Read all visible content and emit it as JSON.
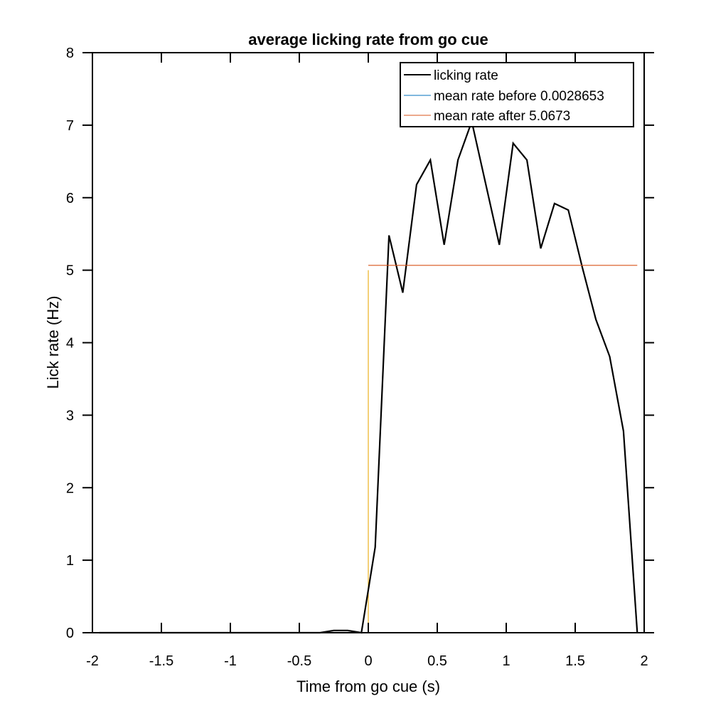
{
  "chart_data": {
    "type": "line",
    "title": "average licking rate from go cue",
    "xlabel": "Time from go cue (s)",
    "ylabel": "Lick rate (Hz)",
    "xlim": [
      -2,
      2
    ],
    "ylim": [
      0,
      8
    ],
    "x_ticks": [
      -2,
      -1.5,
      -1,
      -0.5,
      0,
      0.5,
      1,
      1.5,
      2
    ],
    "y_ticks": [
      0,
      1,
      2,
      3,
      4,
      5,
      6,
      7,
      8
    ],
    "x_tick_labels": [
      "-2",
      "-1.5",
      "-1",
      "-0.5",
      "0",
      "0.5",
      "1",
      "1.5",
      "2"
    ],
    "y_tick_labels": [
      "0",
      "1",
      "2",
      "3",
      "4",
      "5",
      "6",
      "7",
      "8"
    ],
    "grid": false,
    "legend_position": "top-right",
    "series": [
      {
        "name": "licking rate",
        "color": "#000000",
        "x": [
          -1.95,
          -1.85,
          -1.75,
          -1.65,
          -1.55,
          -1.45,
          -1.35,
          -1.25,
          -1.15,
          -1.05,
          -0.95,
          -0.85,
          -0.75,
          -0.65,
          -0.55,
          -0.45,
          -0.35,
          -0.25,
          -0.15,
          -0.05,
          0.05,
          0.15,
          0.25,
          0.35,
          0.45,
          0.55,
          0.65,
          0.75,
          0.85,
          0.95,
          1.05,
          1.15,
          1.25,
          1.35,
          1.45,
          1.55,
          1.65,
          1.75,
          1.85,
          1.95
        ],
        "y": [
          0,
          0,
          0,
          0,
          0,
          0,
          0,
          0,
          0,
          0,
          0,
          0,
          0,
          0,
          0,
          0,
          0,
          0.03,
          0.03,
          0,
          1.18,
          5.48,
          4.69,
          6.18,
          6.52,
          5.35,
          6.52,
          7.05,
          6.2,
          5.35,
          6.75,
          6.52,
          5.3,
          5.92,
          5.83,
          5.05,
          4.32,
          3.81,
          2.78,
          0
        ]
      },
      {
        "name": "mean rate before 0.0028653",
        "color": "#0072BD",
        "x": [
          -2,
          0
        ],
        "y": [
          0.0028653,
          0.0028653
        ]
      },
      {
        "name": "mean rate after 5.0673",
        "color": "#D95319",
        "x": [
          0,
          1.95
        ],
        "y": [
          5.0673,
          5.0673
        ]
      }
    ],
    "annotations": [
      {
        "type": "vertical-line",
        "x": 0,
        "y_range": [
          0,
          5
        ],
        "color": "#EDB120"
      }
    ]
  }
}
